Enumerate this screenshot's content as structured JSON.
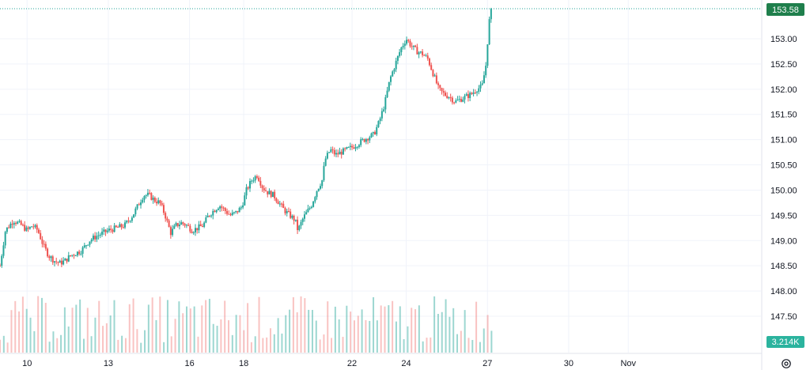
{
  "chart_data": {
    "type": "candlestick",
    "title": "",
    "xlabel": "",
    "ylabel": "",
    "ylim": [
      147.2,
      153.7
    ],
    "y_ticks": [
      "153.00",
      "152.50",
      "152.00",
      "151.50",
      "151.00",
      "150.50",
      "150.00",
      "149.50",
      "149.00",
      "148.50",
      "148.00",
      "147.50"
    ],
    "y_tick_values": [
      153.0,
      152.5,
      152.0,
      151.5,
      151.0,
      150.5,
      150.0,
      149.5,
      149.0,
      148.5,
      148.0,
      147.5
    ],
    "x_ticks": [
      "10",
      "13",
      "16",
      "18",
      "22",
      "24",
      "27",
      "30",
      "Nov"
    ],
    "x_tick_days": [
      10,
      13,
      16,
      18,
      22,
      24,
      27,
      30,
      32.2
    ],
    "x_range_days": [
      9.0,
      37.1
    ],
    "last_price": "153.58",
    "last_price_value": 153.58,
    "volume_label": "3.214K",
    "series": [
      {
        "kind": "price_path",
        "points": [
          [
            9.0,
            148.5
          ],
          [
            9.2,
            149.2
          ],
          [
            9.5,
            149.4
          ],
          [
            9.8,
            149.3
          ],
          [
            10.0,
            149.2
          ],
          [
            10.2,
            149.3
          ],
          [
            10.4,
            149.2
          ],
          [
            10.6,
            148.9
          ],
          [
            10.8,
            148.7
          ],
          [
            11.0,
            148.6
          ],
          [
            11.2,
            148.55
          ],
          [
            11.4,
            148.6
          ],
          [
            11.6,
            148.7
          ],
          [
            11.8,
            148.75
          ],
          [
            12.0,
            148.8
          ],
          [
            12.3,
            149.0
          ],
          [
            12.6,
            149.1
          ],
          [
            13.0,
            149.2
          ],
          [
            13.3,
            149.25
          ],
          [
            13.6,
            149.3
          ],
          [
            13.9,
            149.5
          ],
          [
            14.1,
            149.7
          ],
          [
            14.3,
            149.9
          ],
          [
            14.5,
            149.9
          ],
          [
            14.7,
            149.8
          ],
          [
            14.9,
            149.75
          ],
          [
            15.1,
            149.5
          ],
          [
            15.3,
            149.15
          ],
          [
            15.5,
            149.3
          ],
          [
            15.7,
            149.35
          ],
          [
            15.9,
            149.3
          ],
          [
            16.1,
            149.2
          ],
          [
            16.3,
            149.25
          ],
          [
            16.5,
            149.3
          ],
          [
            16.7,
            149.5
          ],
          [
            16.9,
            149.6
          ],
          [
            17.1,
            149.7
          ],
          [
            17.3,
            149.6
          ],
          [
            17.5,
            149.5
          ],
          [
            17.7,
            149.55
          ],
          [
            17.9,
            149.65
          ],
          [
            18.0,
            149.8
          ],
          [
            18.1,
            150.0
          ],
          [
            18.3,
            150.2
          ],
          [
            18.5,
            150.3
          ],
          [
            18.7,
            150.05
          ],
          [
            18.9,
            149.95
          ],
          [
            19.1,
            149.9
          ],
          [
            19.3,
            149.75
          ],
          [
            19.5,
            149.6
          ],
          [
            19.7,
            149.5
          ],
          [
            19.9,
            149.4
          ],
          [
            20.0,
            149.2
          ],
          [
            20.2,
            149.45
          ],
          [
            20.5,
            149.7
          ],
          [
            20.7,
            150.0
          ],
          [
            20.9,
            150.2
          ],
          [
            21.0,
            150.6
          ],
          [
            21.2,
            150.8
          ],
          [
            21.4,
            150.7
          ],
          [
            21.6,
            150.75
          ],
          [
            21.8,
            150.8
          ],
          [
            22.0,
            150.85
          ],
          [
            22.3,
            150.95
          ],
          [
            22.6,
            151.05
          ],
          [
            22.8,
            151.1
          ],
          [
            23.0,
            151.35
          ],
          [
            23.2,
            151.7
          ],
          [
            23.4,
            152.2
          ],
          [
            23.6,
            152.5
          ],
          [
            23.8,
            152.8
          ],
          [
            24.0,
            153.0
          ],
          [
            24.2,
            152.85
          ],
          [
            24.4,
            152.75
          ],
          [
            24.6,
            152.7
          ],
          [
            24.8,
            152.6
          ],
          [
            25.0,
            152.3
          ],
          [
            25.2,
            152.0
          ],
          [
            25.4,
            151.9
          ],
          [
            25.6,
            151.85
          ],
          [
            25.8,
            151.75
          ],
          [
            26.0,
            151.8
          ],
          [
            26.2,
            151.85
          ],
          [
            26.4,
            151.9
          ],
          [
            26.6,
            152.0
          ],
          [
            26.8,
            152.05
          ],
          [
            26.95,
            152.5
          ],
          [
            27.05,
            153.3
          ],
          [
            27.15,
            153.58
          ]
        ]
      }
    ],
    "volume_bars_count": 130
  }
}
